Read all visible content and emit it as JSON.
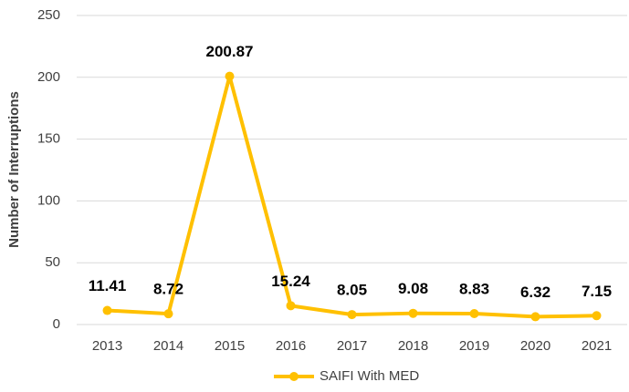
{
  "chart_data": {
    "type": "line",
    "y_label": "Number of Interruptions",
    "categories": [
      "2013",
      "2014",
      "2015",
      "2016",
      "2017",
      "2018",
      "2019",
      "2020",
      "2021"
    ],
    "series": [
      {
        "name": "SAIFI With MED",
        "color": "#FFC000",
        "values": [
          11.41,
          8.72,
          200.87,
          15.24,
          8.05,
          9.08,
          8.83,
          6.32,
          7.15
        ]
      }
    ],
    "ylim": [
      0,
      250
    ],
    "yticks": [
      0,
      50,
      100,
      150,
      200,
      250
    ],
    "grid": true,
    "legend": "bottom"
  }
}
